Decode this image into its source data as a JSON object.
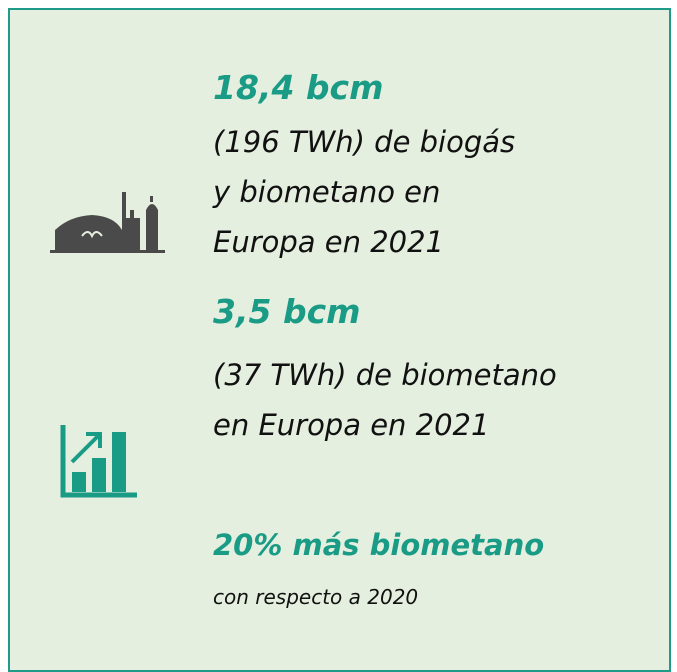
{
  "items": [
    {
      "heading": "18,4 bcm",
      "lines": [
        "(196 TWh) de biogás",
        "y biometano en",
        "Europa en 2021"
      ]
    },
    {
      "heading": "3,5 bcm",
      "lines": [
        "(37 TWh) de biometano",
        "en Europa en 2021"
      ]
    },
    {
      "heading": "20% más biometano",
      "lines": [
        "con respecto a 2020"
      ]
    }
  ]
}
